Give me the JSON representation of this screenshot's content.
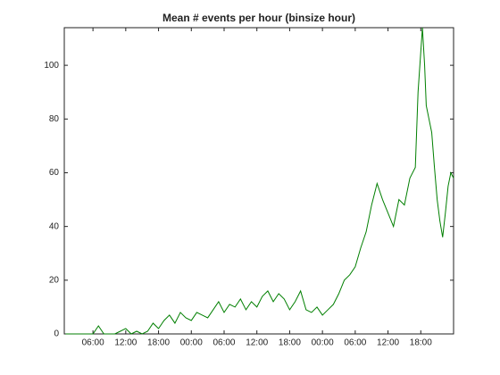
{
  "chart_data": {
    "type": "line",
    "title": "Mean # events per hour (binsize  hour)",
    "x": [
      1,
      2,
      3,
      4,
      5,
      6,
      7,
      8,
      9,
      10,
      11,
      12,
      13,
      14,
      15,
      16,
      17,
      18,
      19,
      20,
      21,
      22,
      23,
      24,
      25,
      26,
      27,
      28,
      29,
      30,
      31,
      32,
      33,
      34,
      35,
      36,
      37,
      38,
      39,
      40,
      41,
      42,
      43,
      44,
      45,
      46,
      47,
      48,
      49,
      50,
      51,
      52,
      53,
      54,
      55,
      56,
      57,
      58,
      59,
      60,
      61,
      62,
      63,
      64,
      65,
      65.5,
      66,
      66.3,
      66.7,
      67,
      67.5,
      68,
      68.5,
      69,
      69.5,
      70,
      70.5,
      71,
      71.5,
      72
    ],
    "series": [
      {
        "name": "events",
        "color": "#007f00",
        "values": [
          0,
          0,
          0,
          0,
          0,
          0,
          3,
          0,
          0,
          0,
          1,
          2,
          0,
          1,
          0,
          1,
          4,
          2,
          5,
          7,
          4,
          8,
          6,
          5,
          8,
          7,
          6,
          9,
          12,
          8,
          11,
          10,
          13,
          9,
          12,
          10,
          14,
          16,
          12,
          15,
          13,
          9,
          12,
          16,
          9,
          8,
          10,
          7,
          9,
          11,
          15,
          20,
          22,
          25,
          32,
          38,
          48,
          56,
          50,
          45,
          40,
          50,
          48,
          58,
          62,
          90,
          105,
          114,
          100,
          85,
          80,
          75,
          62,
          50,
          42,
          36,
          45,
          55,
          60,
          58
        ]
      }
    ],
    "xlim": [
      0.75,
      72
    ],
    "xticks": [
      {
        "value": 6,
        "label": "06:00"
      },
      {
        "value": 12,
        "label": "12:00"
      },
      {
        "value": 18,
        "label": "18:00"
      },
      {
        "value": 24,
        "label": "00:00"
      },
      {
        "value": 30,
        "label": "06:00"
      },
      {
        "value": 36,
        "label": "12:00"
      },
      {
        "value": 42,
        "label": "18:00"
      },
      {
        "value": 48,
        "label": "00:00"
      },
      {
        "value": 54,
        "label": "06:00"
      },
      {
        "value": 60,
        "label": "12:00"
      },
      {
        "value": 66,
        "label": "18:00"
      }
    ],
    "ylim": [
      0,
      114
    ],
    "yticks": [
      0,
      20,
      40,
      60,
      80,
      100
    ]
  }
}
